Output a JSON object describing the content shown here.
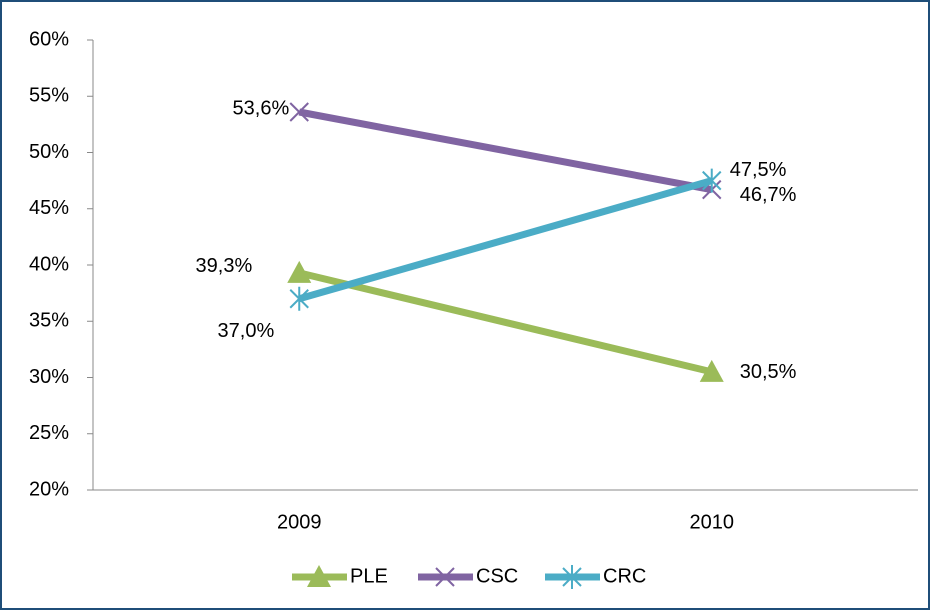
{
  "chart_data": {
    "type": "line",
    "categories": [
      "2009",
      "2010"
    ],
    "series": [
      {
        "name": "PLE",
        "color": "#9bbb59",
        "marker": "triangle",
        "values": [
          39.3,
          30.5
        ],
        "value_labels": [
          "39,3%",
          "30,5%"
        ]
      },
      {
        "name": "CSC",
        "color": "#8064a2",
        "marker": "x",
        "values": [
          53.6,
          46.7
        ],
        "value_labels": [
          "53,6%",
          "46,7%"
        ]
      },
      {
        "name": "CRC",
        "color": "#4bacc6",
        "marker": "star",
        "values": [
          37.0,
          47.5
        ],
        "value_labels": [
          "37,0%",
          "47,5%"
        ]
      }
    ],
    "ylim": [
      20,
      60
    ],
    "yticks": [
      {
        "value": 20,
        "label": "20%"
      },
      {
        "value": 25,
        "label": "25%"
      },
      {
        "value": 30,
        "label": "30%"
      },
      {
        "value": 35,
        "label": "35%"
      },
      {
        "value": 40,
        "label": "40%"
      },
      {
        "value": 45,
        "label": "45%"
      },
      {
        "value": 50,
        "label": "50%"
      },
      {
        "value": 55,
        "label": "55%"
      },
      {
        "value": 60,
        "label": "60%"
      }
    ],
    "grid": false,
    "legend": "bottom"
  }
}
